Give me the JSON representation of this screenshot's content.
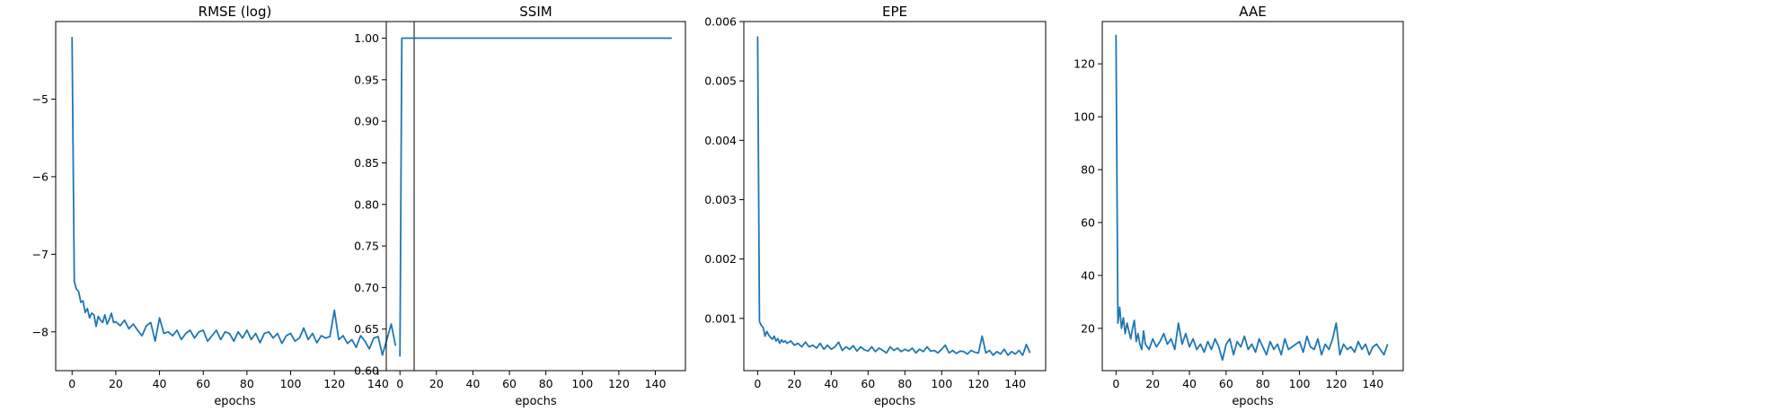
{
  "chart_data": [
    {
      "type": "line",
      "title": "RMSE (log)",
      "xlabel": "epochs",
      "ylabel": "",
      "xlim": [
        -7.5,
        156.5
      ],
      "ylim": [
        -8.5,
        -4.0
      ],
      "xticks": [
        0,
        20,
        40,
        60,
        80,
        100,
        120,
        140
      ],
      "yticks": [
        -8,
        -7,
        -6,
        -5
      ],
      "ytick_labels": [
        "−8",
        "−7",
        "−6",
        "−5"
      ],
      "grid": false,
      "series": [
        {
          "color": "#1f77b4",
          "x": [
            0,
            1,
            2,
            3,
            4,
            5,
            6,
            7,
            8,
            9,
            10,
            11,
            12,
            13,
            14,
            15,
            16,
            17,
            18,
            19,
            20,
            22,
            24,
            26,
            28,
            30,
            32,
            34,
            36,
            38,
            40,
            42,
            44,
            46,
            48,
            50,
            52,
            54,
            56,
            58,
            60,
            62,
            64,
            66,
            68,
            70,
            72,
            74,
            76,
            78,
            80,
            82,
            84,
            86,
            88,
            90,
            92,
            94,
            96,
            98,
            100,
            102,
            104,
            106,
            108,
            110,
            112,
            114,
            116,
            118,
            120,
            122,
            124,
            126,
            128,
            130,
            132,
            134,
            136,
            138,
            140,
            142,
            144,
            146,
            148
          ],
          "y": [
            -4.2,
            -7.35,
            -7.45,
            -7.48,
            -7.62,
            -7.6,
            -7.75,
            -7.7,
            -7.82,
            -7.76,
            -7.78,
            -7.93,
            -7.8,
            -7.85,
            -7.88,
            -7.78,
            -7.9,
            -7.84,
            -7.76,
            -7.88,
            -7.87,
            -7.92,
            -7.85,
            -7.96,
            -7.9,
            -7.98,
            -8.05,
            -7.92,
            -7.88,
            -8.12,
            -7.82,
            -8.02,
            -8.0,
            -8.05,
            -7.98,
            -8.1,
            -8.02,
            -7.98,
            -8.08,
            -8.0,
            -7.98,
            -8.12,
            -8.05,
            -7.98,
            -8.1,
            -8.0,
            -8.02,
            -8.12,
            -8.0,
            -8.08,
            -7.98,
            -8.1,
            -8.02,
            -8.14,
            -8.02,
            -8.0,
            -8.08,
            -8.02,
            -8.15,
            -8.05,
            -8.02,
            -8.12,
            -8.08,
            -7.95,
            -8.1,
            -8.02,
            -8.14,
            -8.05,
            -8.08,
            -8.06,
            -7.72,
            -8.1,
            -8.05,
            -8.15,
            -8.1,
            -8.2,
            -8.05,
            -8.12,
            -8.22,
            -8.08,
            -8.06,
            -8.3,
            -8.1,
            -7.9,
            -8.18
          ]
        }
      ]
    },
    {
      "type": "line",
      "title": "SSIM",
      "xlabel": "epochs",
      "ylabel": "",
      "xlim": [
        -7.5,
        156.5
      ],
      "ylim": [
        0.6,
        1.02
      ],
      "xticks": [
        0,
        20,
        40,
        60,
        80,
        100,
        120,
        140
      ],
      "yticks": [
        0.6,
        0.65,
        0.7,
        0.75,
        0.8,
        0.85,
        0.9,
        0.95,
        1.0
      ],
      "ytick_labels": [
        "0.60",
        "0.65",
        "0.70",
        "0.75",
        "0.80",
        "0.85",
        "0.90",
        "0.95",
        "1.00"
      ],
      "grid": false,
      "series": [
        {
          "color": "#1f77b4",
          "x": [
            0,
            1,
            149
          ],
          "y": [
            0.617,
            1.0,
            1.0
          ]
        }
      ]
    },
    {
      "type": "line",
      "title": "EPE",
      "xlabel": "epochs",
      "ylabel": "",
      "xlim": [
        -7.5,
        156.5
      ],
      "ylim": [
        0.00012,
        0.006
      ],
      "xticks": [
        0,
        20,
        40,
        60,
        80,
        100,
        120,
        140
      ],
      "yticks": [
        0.001,
        0.002,
        0.003,
        0.004,
        0.005,
        0.006
      ],
      "ytick_labels": [
        "0.001",
        "0.002",
        "0.003",
        "0.004",
        "0.005",
        "0.006"
      ],
      "grid": false,
      "series": [
        {
          "color": "#1f77b4",
          "x": [
            0,
            1,
            2,
            3,
            4,
            5,
            6,
            7,
            8,
            9,
            10,
            11,
            12,
            13,
            14,
            15,
            16,
            18,
            20,
            22,
            24,
            26,
            28,
            30,
            32,
            34,
            36,
            38,
            40,
            42,
            44,
            46,
            48,
            50,
            52,
            54,
            56,
            58,
            60,
            62,
            64,
            66,
            68,
            70,
            72,
            74,
            76,
            78,
            80,
            82,
            84,
            86,
            88,
            90,
            92,
            94,
            96,
            98,
            100,
            102,
            104,
            106,
            108,
            110,
            112,
            114,
            116,
            118,
            120,
            122,
            124,
            126,
            128,
            130,
            132,
            134,
            136,
            138,
            140,
            142,
            144,
            146,
            148
          ],
          "y": [
            0.00575,
            0.00095,
            0.00088,
            0.00085,
            0.0007,
            0.00078,
            0.00072,
            0.00068,
            0.00065,
            0.0007,
            0.00062,
            0.00066,
            0.00058,
            0.00064,
            0.0006,
            0.00062,
            0.00058,
            0.00062,
            0.00055,
            0.00058,
            0.00052,
            0.0006,
            0.00052,
            0.00055,
            0.0005,
            0.00058,
            0.00048,
            0.00055,
            0.00048,
            0.00052,
            0.0006,
            0.00046,
            0.00052,
            0.00048,
            0.00054,
            0.00045,
            0.00052,
            0.00047,
            0.00045,
            0.00052,
            0.00044,
            0.0005,
            0.00046,
            0.00042,
            0.00052,
            0.00046,
            0.0005,
            0.00044,
            0.00048,
            0.00045,
            0.0005,
            0.00042,
            0.00048,
            0.00044,
            0.00052,
            0.00045,
            0.00046,
            0.00042,
            0.00048,
            0.00055,
            0.00042,
            0.00046,
            0.00041,
            0.00045,
            0.00044,
            0.0004,
            0.00046,
            0.00043,
            0.00042,
            0.0007,
            0.00042,
            0.00046,
            0.00038,
            0.00044,
            0.0004,
            0.00048,
            0.00038,
            0.00044,
            0.0004,
            0.00046,
            0.00038,
            0.00056,
            0.00042
          ]
        }
      ]
    },
    {
      "type": "line",
      "title": "AAE",
      "xlabel": "epochs",
      "ylabel": "",
      "xlim": [
        -7.5,
        156.5
      ],
      "ylim": [
        4,
        136
      ],
      "xticks": [
        0,
        20,
        40,
        60,
        80,
        100,
        120,
        140
      ],
      "yticks": [
        20,
        40,
        60,
        80,
        100,
        120
      ],
      "ytick_labels": [
        "20",
        "40",
        "60",
        "80",
        "100",
        "120"
      ],
      "grid": false,
      "series": [
        {
          "color": "#1f77b4",
          "x": [
            0,
            1,
            2,
            3,
            4,
            5,
            6,
            7,
            8,
            9,
            10,
            11,
            12,
            13,
            14,
            15,
            16,
            18,
            20,
            22,
            24,
            26,
            28,
            30,
            32,
            34,
            36,
            38,
            40,
            42,
            44,
            46,
            48,
            50,
            52,
            54,
            56,
            58,
            60,
            62,
            64,
            66,
            68,
            70,
            72,
            74,
            76,
            78,
            80,
            82,
            84,
            86,
            88,
            90,
            92,
            94,
            96,
            98,
            100,
            102,
            104,
            106,
            108,
            110,
            112,
            114,
            116,
            118,
            120,
            122,
            124,
            126,
            128,
            130,
            132,
            134,
            136,
            138,
            140,
            142,
            144,
            146,
            148
          ],
          "y": [
            131,
            22,
            28,
            20,
            24,
            18,
            22,
            19,
            16,
            20,
            23,
            15,
            18,
            14,
            12,
            19,
            14,
            12,
            16,
            13,
            15,
            18,
            14,
            16,
            12,
            22,
            14,
            18,
            13,
            16,
            12,
            14,
            11,
            15,
            12,
            16,
            13,
            8,
            14,
            16,
            10,
            15,
            13,
            17,
            12,
            14,
            11,
            16,
            13,
            10,
            15,
            12,
            14,
            10,
            16,
            12,
            13,
            14,
            15,
            11,
            17,
            13,
            12,
            16,
            10,
            14,
            12,
            16,
            22,
            10,
            14,
            12,
            13,
            11,
            15,
            12,
            14,
            10,
            13,
            14,
            12,
            10,
            14
          ]
        }
      ]
    }
  ]
}
